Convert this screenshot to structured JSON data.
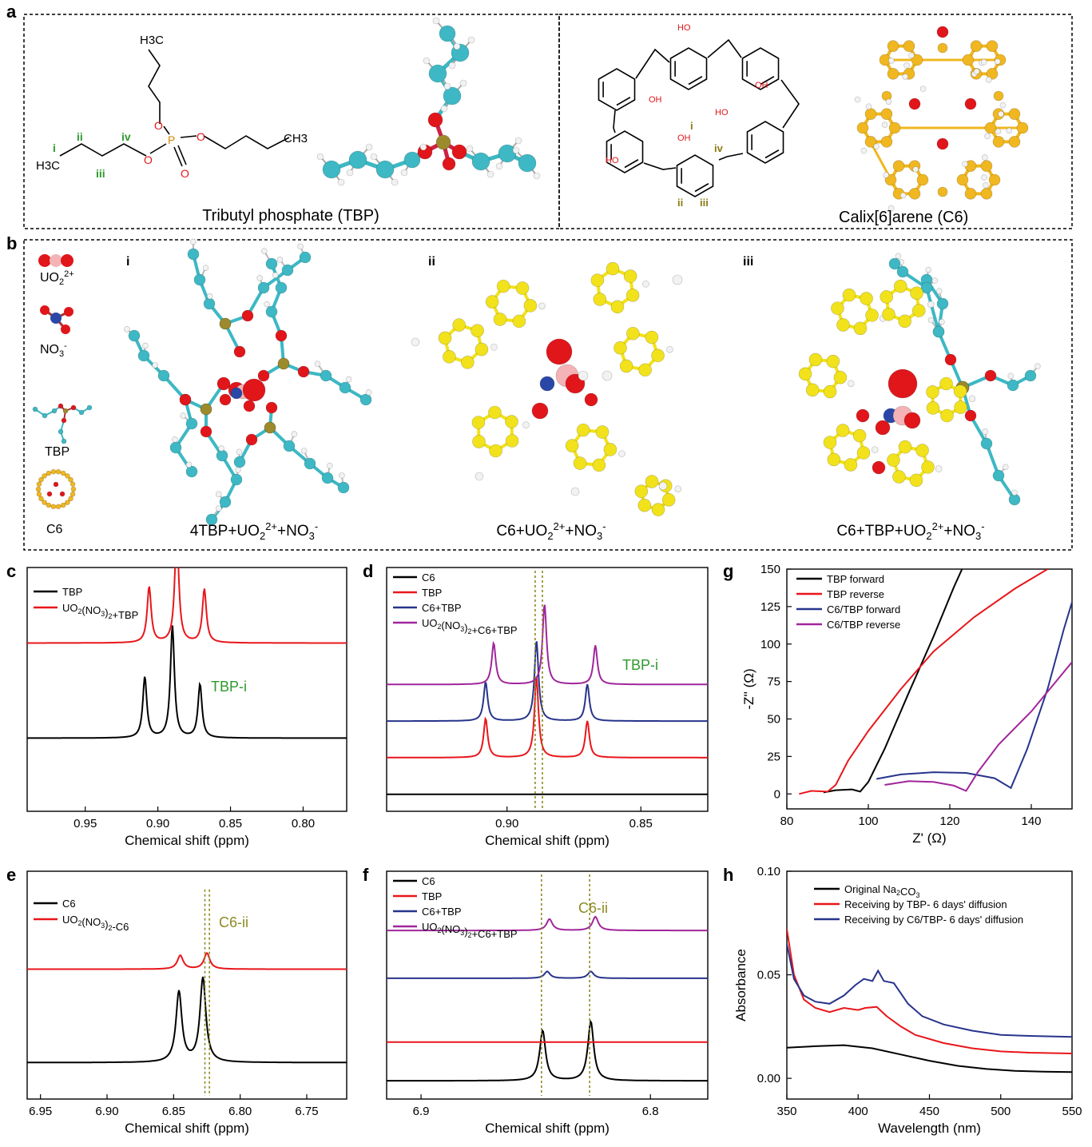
{
  "panel_letters": {
    "a": "a",
    "b": "b",
    "c": "c",
    "d": "d",
    "e": "e",
    "f": "f",
    "g": "g",
    "h": "h"
  },
  "panel_a": {
    "tbp_caption": "Tributyl phosphate (TBP)",
    "c6_caption": "Calix[6]arene (C6)",
    "tbp_labels": {
      "h3c_top": "H3C",
      "h3c_left": "H3C",
      "ch3_right": "CH3",
      "p": "P",
      "o": "O",
      "i": "i",
      "ii": "ii",
      "iii": "iii",
      "iv": "iv"
    },
    "c6_labels": {
      "oh": "OH",
      "ho": "HO",
      "i": "i",
      "ii": "ii",
      "iii": "iii",
      "iv": "iv"
    }
  },
  "panel_b": {
    "legend": {
      "uo2": "UO22+",
      "no3": "NO3-",
      "tbp": "TBP",
      "c6": "C6"
    },
    "sub_labels": {
      "i": "i",
      "ii": "ii",
      "iii": "iii"
    },
    "captions": {
      "i": "4TBP+UO22++NO3-",
      "ii": "C6+UO22++NO3-",
      "iii": "C6+TBP+UO22++NO3-"
    }
  },
  "colors": {
    "black": "#000000",
    "red": "#e8161b",
    "blue": "#27348b",
    "magenta": "#a0269b",
    "green": "#2e9a2e",
    "olive": "#8d8a22",
    "cyan": "#3db8c4",
    "yellow": "#f2e21b",
    "o_red": "#e0161b",
    "p_gold": "#9c8a2c",
    "n_blue": "#2a47a8",
    "gold": "#f0b720"
  },
  "chart_data": [
    {
      "panel": "c",
      "type": "line",
      "xlabel": "Chemical shift (ppm)",
      "ylabel": "",
      "xlim": [
        0.99,
        0.77
      ],
      "xticks": [
        0.95,
        0.9,
        0.85,
        0.8
      ],
      "xtick_labels": [
        "0.95",
        "0.90",
        "0.85",
        "0.80"
      ],
      "annotation": "TBP-i",
      "series": [
        {
          "name": "TBP",
          "peaks": [
            [
              0.909,
              0.25
            ],
            [
              0.89,
              0.46
            ],
            [
              0.871,
              0.22
            ]
          ]
        },
        {
          "name": "UO2(NO3)2+TBP",
          "peaks": [
            [
              0.906,
              0.23
            ],
            [
              0.887,
              0.46
            ],
            [
              0.868,
              0.22
            ]
          ]
        }
      ]
    },
    {
      "panel": "d",
      "type": "line",
      "xlabel": "Chemical shift (ppm)",
      "ylabel": "",
      "xlim": [
        0.945,
        0.825
      ],
      "xticks": [
        0.9,
        0.85
      ],
      "xtick_labels": [
        "0.90",
        "0.85"
      ],
      "annotation": "TBP-i",
      "series": [
        {
          "name": "C6",
          "peaks": []
        },
        {
          "name": "TBP",
          "peaks": [
            [
              0.908,
              0.16
            ],
            [
              0.889,
              0.33
            ],
            [
              0.87,
              0.15
            ]
          ]
        },
        {
          "name": "C6+TBP",
          "peaks": [
            [
              0.908,
              0.16
            ],
            [
              0.889,
              0.33
            ],
            [
              0.87,
              0.15
            ]
          ]
        },
        {
          "name": "UO2(NO3)2+C6+TBP",
          "peaks": [
            [
              0.905,
              0.17
            ],
            [
              0.886,
              0.33
            ],
            [
              0.867,
              0.16
            ]
          ]
        }
      ]
    },
    {
      "panel": "g",
      "type": "line",
      "xlabel": "Z' (Ω)",
      "ylabel": "-Z'' (Ω)",
      "xlim": [
        80,
        150
      ],
      "ylim": [
        -10,
        150
      ],
      "xticks": [
        80,
        100,
        120,
        140
      ],
      "yticks": [
        0,
        25,
        50,
        75,
        100,
        125,
        150
      ],
      "xtick_labels": [
        "80",
        "100",
        "120",
        "140"
      ],
      "ytick_labels": [
        "0",
        "25",
        "50",
        "75",
        "100",
        "125",
        "150"
      ],
      "series": [
        {
          "name": "TBP forward",
          "points": [
            [
              89,
              1
            ],
            [
              92,
              2.5
            ],
            [
              96,
              3
            ],
            [
              98,
              1.5
            ],
            [
              100,
              8
            ],
            [
              104,
              30
            ],
            [
              110,
              68
            ],
            [
              116,
              105
            ],
            [
              121,
              138
            ],
            [
              123,
              150
            ]
          ]
        },
        {
          "name": "TBP reverse",
          "points": [
            [
              83,
              0
            ],
            [
              86,
              2
            ],
            [
              90,
              1.5
            ],
            [
              92,
              6
            ],
            [
              95,
              22
            ],
            [
              100,
              42
            ],
            [
              108,
              70
            ],
            [
              116,
              95
            ],
            [
              126,
              118
            ],
            [
              136,
              137
            ],
            [
              144,
              150
            ]
          ]
        },
        {
          "name": "C6/TBP forward",
          "points": [
            [
              102,
              10
            ],
            [
              108,
              13
            ],
            [
              116,
              14.5
            ],
            [
              124,
              14
            ],
            [
              131,
              10.5
            ],
            [
              135,
              4
            ],
            [
              139,
              30
            ],
            [
              144,
              70
            ],
            [
              148,
              110
            ],
            [
              150,
              128
            ]
          ]
        },
        {
          "name": "C6/TBP reverse",
          "points": [
            [
              104,
              6
            ],
            [
              110,
              8.5
            ],
            [
              116,
              8
            ],
            [
              121,
              5.5
            ],
            [
              124,
              2
            ],
            [
              127,
              15
            ],
            [
              132,
              33
            ],
            [
              140,
              55
            ],
            [
              150,
              88
            ]
          ]
        }
      ]
    },
    {
      "panel": "e",
      "type": "line",
      "xlabel": "Chemical shift (ppm)",
      "ylabel": "",
      "xlim": [
        6.96,
        6.72
      ],
      "xticks": [
        6.95,
        6.9,
        6.85,
        6.8,
        6.75
      ],
      "xtick_labels": [
        "6.95",
        "6.90",
        "6.85",
        "6.80",
        "6.75"
      ],
      "annotation": "C6-ii",
      "series": [
        {
          "name": "C6",
          "peaks": [
            [
              6.846,
              0.31
            ],
            [
              6.828,
              0.37
            ]
          ]
        },
        {
          "name": "UO2(NO3)2-C6",
          "peaks": [
            [
              6.845,
              0.06
            ],
            [
              6.825,
              0.07
            ]
          ]
        }
      ]
    },
    {
      "panel": "f",
      "type": "line",
      "xlabel": "Chemical shift (ppm)",
      "ylabel": "",
      "xlim": [
        6.915,
        6.775
      ],
      "xticks": [
        6.9,
        6.8
      ],
      "xtick_labels": [
        "6.9",
        "6.8"
      ],
      "annotation": "C6-ii",
      "series": [
        {
          "name": "C6",
          "peaks": [
            [
              6.847,
              0.22
            ],
            [
              6.826,
              0.26
            ]
          ]
        },
        {
          "name": "TBP",
          "peaks": []
        },
        {
          "name": "C6+TBP",
          "peaks": [
            [
              6.845,
              0.03
            ],
            [
              6.826,
              0.03
            ]
          ]
        },
        {
          "name": "UO2(NO3)2+C6+TBP",
          "peaks": [
            [
              6.844,
              0.05
            ],
            [
              6.824,
              0.06
            ]
          ]
        }
      ]
    },
    {
      "panel": "h",
      "type": "line",
      "xlabel": "Wavelength (nm)",
      "ylabel": "Absorbance",
      "xlim": [
        350,
        550
      ],
      "ylim": [
        -0.01,
        0.1
      ],
      "xticks": [
        350,
        400,
        450,
        500,
        550
      ],
      "yticks": [
        0,
        0.05,
        0.1
      ],
      "xtick_labels": [
        "350",
        "400",
        "450",
        "500",
        "550"
      ],
      "ytick_labels": [
        "0.00",
        "0.05",
        "0.10"
      ],
      "series": [
        {
          "name": "Original Na2CO3",
          "points": [
            [
              350,
              0.0148
            ],
            [
              370,
              0.0155
            ],
            [
              390,
              0.016
            ],
            [
              410,
              0.0145
            ],
            [
              430,
              0.0115
            ],
            [
              450,
              0.0085
            ],
            [
              470,
              0.006
            ],
            [
              490,
              0.0045
            ],
            [
              510,
              0.0036
            ],
            [
              530,
              0.0032
            ],
            [
              550,
              0.003
            ]
          ]
        },
        {
          "name": "Receiving by TBP- 6 days' diffusion",
          "points": [
            [
              350,
              0.072
            ],
            [
              355,
              0.05
            ],
            [
              362,
              0.038
            ],
            [
              370,
              0.034
            ],
            [
              380,
              0.032
            ],
            [
              390,
              0.034
            ],
            [
              400,
              0.033
            ],
            [
              405,
              0.034
            ],
            [
              413,
              0.0345
            ],
            [
              420,
              0.03
            ],
            [
              430,
              0.025
            ],
            [
              440,
              0.021
            ],
            [
              460,
              0.017
            ],
            [
              480,
              0.0145
            ],
            [
              500,
              0.013
            ],
            [
              520,
              0.0124
            ],
            [
              550,
              0.012
            ]
          ]
        },
        {
          "name": "Receiving by C6/TBP- 6 days' diffusion",
          "points": [
            [
              350,
              0.065
            ],
            [
              355,
              0.048
            ],
            [
              362,
              0.04
            ],
            [
              370,
              0.037
            ],
            [
              380,
              0.036
            ],
            [
              390,
              0.04
            ],
            [
              398,
              0.045
            ],
            [
              404,
              0.048
            ],
            [
              410,
              0.047
            ],
            [
              414,
              0.052
            ],
            [
              418,
              0.047
            ],
            [
              425,
              0.046
            ],
            [
              435,
              0.036
            ],
            [
              445,
              0.03
            ],
            [
              460,
              0.026
            ],
            [
              480,
              0.023
            ],
            [
              500,
              0.021
            ],
            [
              520,
              0.0205
            ],
            [
              550,
              0.02
            ]
          ]
        }
      ]
    }
  ]
}
